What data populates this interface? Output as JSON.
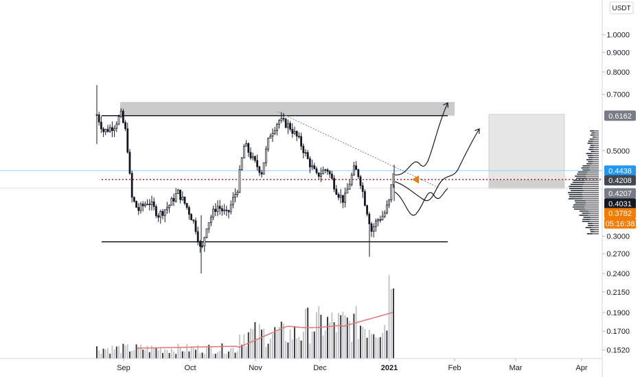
{
  "chart_data": {
    "type": "candlestick",
    "currency": "USDT",
    "price_axis": {
      "scale": "log",
      "ticks": [
        "1.0000",
        "0.9000",
        "0.8000",
        "0.7000",
        "0.5000",
        "0.3000",
        "0.2700",
        "0.2400",
        "0.2150",
        "0.1900",
        "0.1700",
        "0.1520"
      ]
    },
    "time_axis": {
      "months": [
        "Sep",
        "Oct",
        "Nov",
        "Dec",
        "2021",
        "Feb",
        "Mar",
        "Apr"
      ]
    },
    "price_badges": [
      {
        "label": "0.6162",
        "price": 0.6162,
        "bg": "#787b86",
        "fg": "#ffffff"
      },
      {
        "label": "0.4438",
        "price": 0.4438,
        "bg": "#2196f3",
        "fg": "#ffffff"
      },
      {
        "label": "0.4208",
        "price": 0.4208,
        "bg": "#434651",
        "fg": "#ffffff"
      },
      {
        "label": "0.4207",
        "price": 0.4207,
        "bg": "#787b86",
        "fg": "#ffffff"
      },
      {
        "label": "0.4031",
        "price": 0.4031,
        "bg": "#131722",
        "fg": "#ffffff"
      },
      {
        "label": "0.3782",
        "price": 0.3782,
        "bg": "#f57c00",
        "fg": "#ffffff"
      },
      {
        "label": "05:16:38",
        "price": 0.358,
        "bg": "#f57c00",
        "fg": "#ffffff"
      }
    ],
    "levels": {
      "resistance": 0.6162,
      "support": 0.29,
      "current": 0.4208,
      "last": 0.4438
    },
    "colors": {
      "candle": "#131722",
      "resistance_zone": "#bdbdbd",
      "target_zone": "#e6e6e6",
      "support_line": "#131722",
      "dotted_level": "#b71c1c",
      "last_price_line": "#90caf9",
      "ma_line": "#e57373",
      "volume": "#9e9e9e",
      "arrow": "#f57c00"
    }
  }
}
